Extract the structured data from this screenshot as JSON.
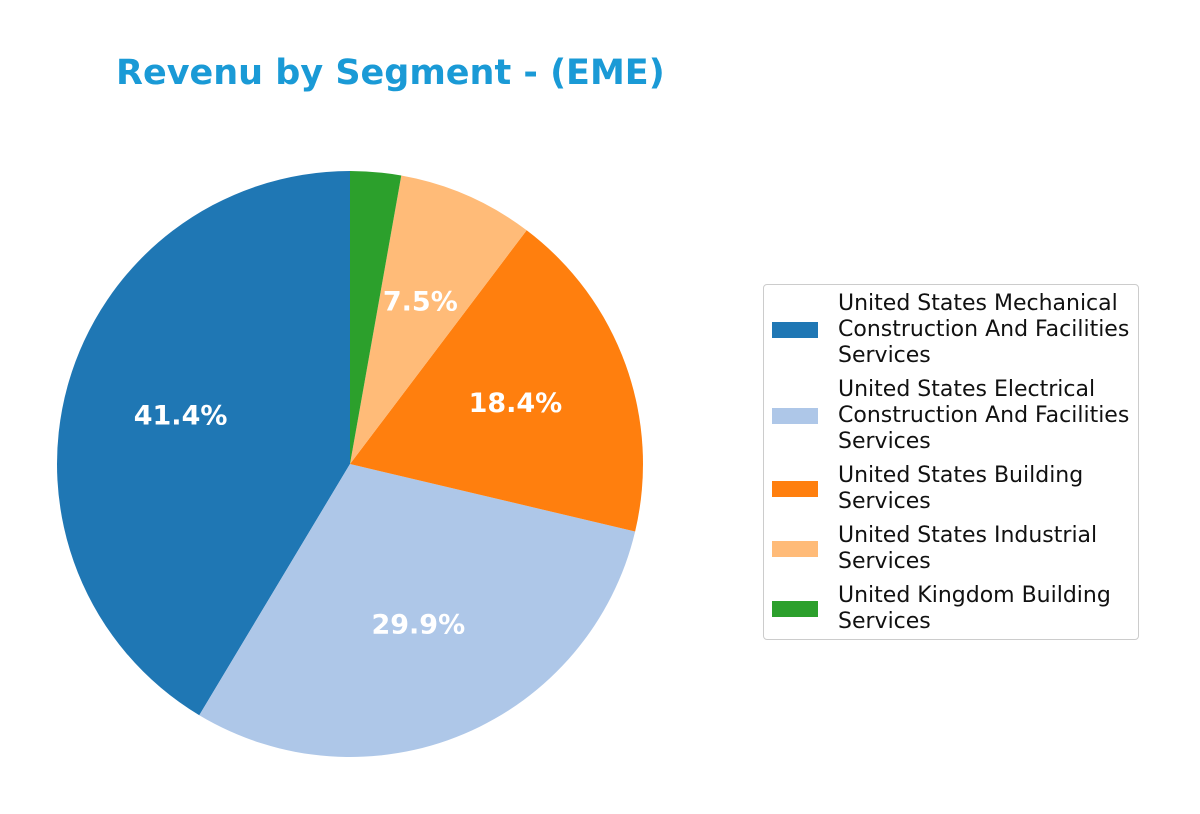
{
  "chart_data": {
    "type": "pie",
    "title": "Revenu by Segment - (EME)",
    "categories": [
      "United States Mechanical Construction And Facilities Services",
      "United States Electrical Construction And Facilities Services",
      "United States Building Services",
      "United States Industrial Services",
      "United Kingdom Building Services"
    ],
    "values": [
      41.4,
      29.9,
      18.4,
      7.5,
      2.8
    ],
    "value_labels": [
      "41.4%",
      "29.9%",
      "18.4%",
      "7.5%",
      null
    ],
    "colors": [
      "#1f77b4",
      "#aec7e8",
      "#ff7f0e",
      "#ffbb78",
      "#2ca02c"
    ],
    "legend": "right"
  }
}
